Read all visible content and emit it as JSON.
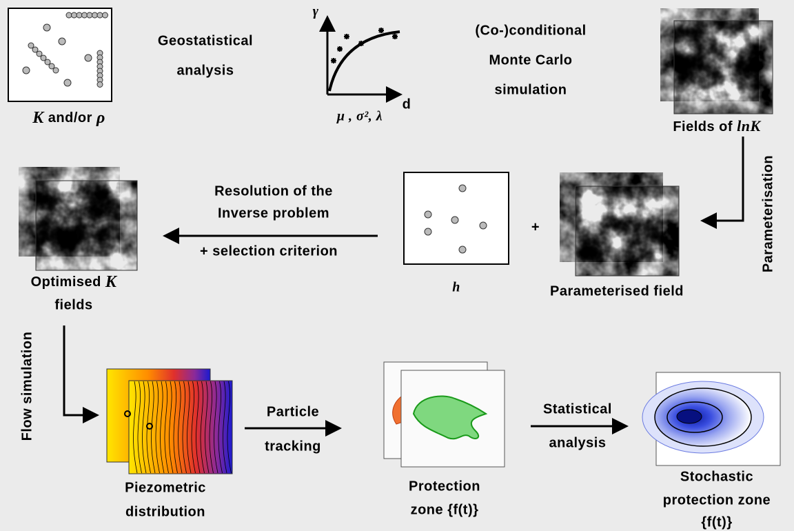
{
  "inputs": {
    "label_parts": [
      "K",
      " and/or ",
      "ρ"
    ]
  },
  "geostatistics": {
    "lines": [
      "Geostatistical",
      "analysis"
    ]
  },
  "variogram": {
    "y_axis": "γ",
    "x_axis": "d",
    "parameters": "μ , σ², λ"
  },
  "simulation": {
    "lines": [
      "(Co-)conditional",
      "Monte Carlo",
      "simulation"
    ]
  },
  "fields": {
    "label_parts": [
      "Fields of ",
      "ln",
      "K"
    ]
  },
  "parameterisation": "Parameterisation",
  "parameterised_field": {
    "plus": "+",
    "label": "Parameterised field"
  },
  "head": "h",
  "inverse": {
    "lines": [
      "Resolution of the",
      "Inverse problem",
      "+ selection criterion"
    ]
  },
  "optimised": {
    "label_parts": [
      "Optimised ",
      "K"
    ],
    "line2": "fields"
  },
  "flow_simulation": "Flow simulation",
  "piezometric": {
    "lines": [
      "Piezometric",
      "distribution"
    ]
  },
  "particle_tracking": {
    "lines": [
      "Particle",
      "tracking"
    ]
  },
  "protection_zone": {
    "lines": [
      "Protection",
      "zone {f(t)}"
    ]
  },
  "statistical_analysis": {
    "lines": [
      "Statistical",
      "analysis"
    ]
  },
  "stochastic_zone": {
    "lines": [
      "Stochastic",
      "protection zone",
      "{f(t)}"
    ]
  }
}
